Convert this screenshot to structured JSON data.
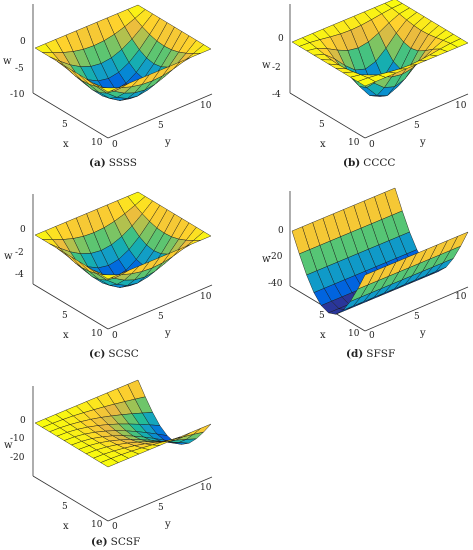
{
  "figure": {
    "panels": [
      {
        "id": "a",
        "caption_label": "(a)",
        "caption_text": "SSSS"
      },
      {
        "id": "b",
        "caption_label": "(b)",
        "caption_text": "CCCC"
      },
      {
        "id": "c",
        "caption_label": "(c)",
        "caption_text": "SCSC"
      },
      {
        "id": "d",
        "caption_label": "(d)",
        "caption_text": "SFSF"
      },
      {
        "id": "e",
        "caption_label": "(e)",
        "caption_text": "SCSF"
      }
    ]
  },
  "chart_data": [
    {
      "type": "surface",
      "title": "(a) SSSS",
      "xlabel": "x",
      "ylabel": "y",
      "zlabel": "w",
      "xlim": [
        0,
        10
      ],
      "ylim": [
        0,
        10
      ],
      "zlim": [
        -10,
        0
      ],
      "x_ticks": [
        "5",
        "10"
      ],
      "y_ticks": [
        "0",
        "5",
        "10"
      ],
      "z_ticks": [
        "0",
        "-5",
        "-10"
      ],
      "grid_n": 11,
      "shape": "bowl",
      "w_min": -10,
      "colormap": "parula"
    },
    {
      "type": "surface",
      "title": "(b) CCCC",
      "xlabel": "x",
      "ylabel": "y",
      "zlabel": "w",
      "xlim": [
        0,
        10
      ],
      "ylim": [
        0,
        10
      ],
      "zlim": [
        -4,
        0
      ],
      "x_ticks": [
        "5",
        "10"
      ],
      "y_ticks": [
        "0",
        "5",
        "10"
      ],
      "z_ticks": [
        "0",
        "-2",
        "-4"
      ],
      "grid_n": 11,
      "shape": "clamped-bowl",
      "w_min": -4,
      "colormap": "parula"
    },
    {
      "type": "surface",
      "title": "(c) SCSC",
      "xlabel": "x",
      "ylabel": "y",
      "zlabel": "w",
      "xlim": [
        0,
        10
      ],
      "ylim": [
        0,
        10
      ],
      "zlim": [
        -5,
        0
      ],
      "x_ticks": [
        "5",
        "10"
      ],
      "y_ticks": [
        "0",
        "5",
        "10"
      ],
      "z_ticks": [
        "0",
        "-2",
        "-4"
      ],
      "grid_n": 11,
      "shape": "bowl",
      "w_min": -5,
      "colormap": "parula"
    },
    {
      "type": "surface",
      "title": "(d) SFSF",
      "xlabel": "x",
      "ylabel": "y",
      "zlabel": "w",
      "xlim": [
        0,
        10
      ],
      "ylim": [
        0,
        10
      ],
      "zlim": [
        -40,
        0
      ],
      "x_ticks": [
        "5",
        "10"
      ],
      "y_ticks": [
        "0",
        "5",
        "10"
      ],
      "z_ticks": [
        "0",
        "-20",
        "-40"
      ],
      "grid_n": 11,
      "shape": "trough",
      "w_min": -42,
      "colormap": "parula"
    },
    {
      "type": "surface",
      "title": "(e) SCSF",
      "xlabel": "x",
      "ylabel": "y",
      "zlabel": "w",
      "xlim": [
        0,
        10
      ],
      "ylim": [
        0,
        10
      ],
      "zlim": [
        -20,
        0
      ],
      "x_ticks": [
        "5",
        "10"
      ],
      "y_ticks": [
        "0",
        "5",
        "10"
      ],
      "z_ticks": [
        "0",
        "-10",
        "-20"
      ],
      "grid_n": 11,
      "shape": "cantilever",
      "w_min": -20,
      "colormap": "parula"
    }
  ]
}
